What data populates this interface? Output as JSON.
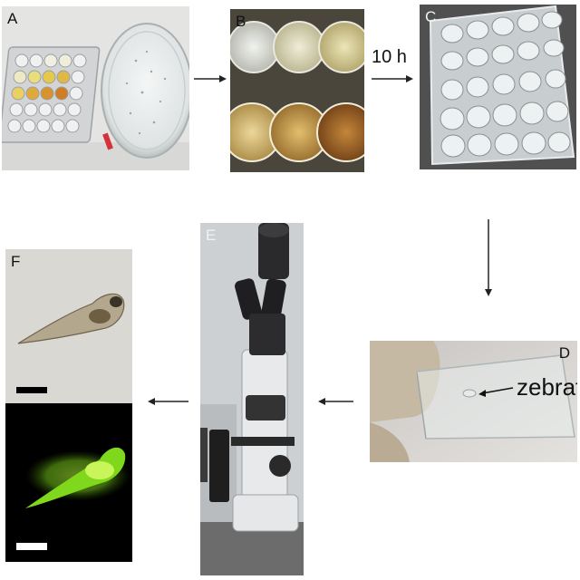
{
  "panels": {
    "a": {
      "label": "A"
    },
    "b": {
      "label": "B"
    },
    "c": {
      "label": "C"
    },
    "d": {
      "label": "D",
      "annotation": "zebrafish"
    },
    "e": {
      "label": "E"
    },
    "f": {
      "label": "F"
    }
  },
  "arrows": {
    "b_to_c": {
      "label": "10 h"
    }
  },
  "colors": {
    "fluorescence": "#7fd81c",
    "arrow": "#222222"
  }
}
